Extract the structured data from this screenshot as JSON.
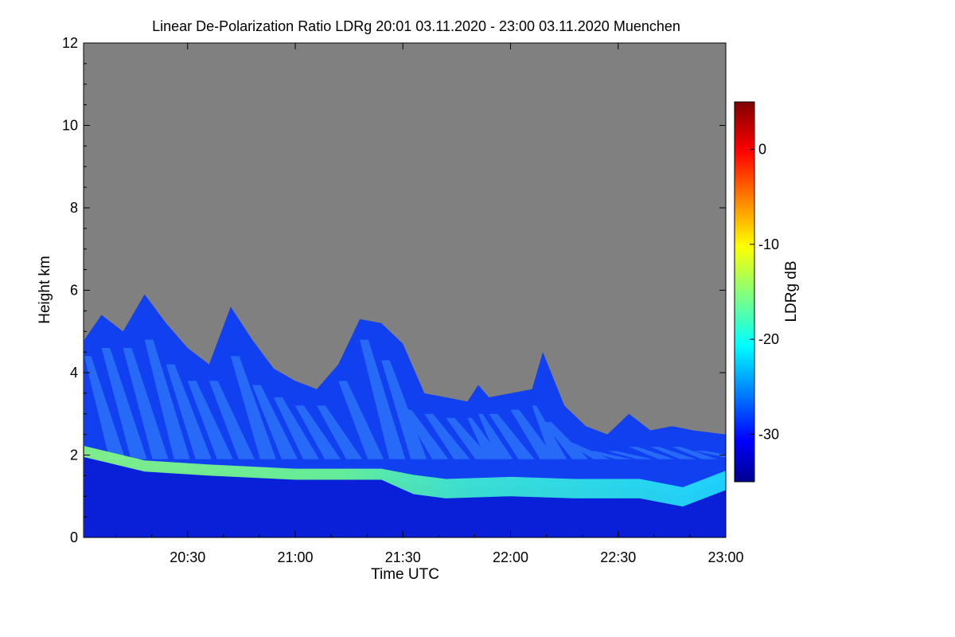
{
  "chart_data": {
    "type": "heatmap",
    "title": "Linear De-Polarization Ratio LDRg   20:01 03.11.2020 - 23:00 03.11.2020 Muenchen",
    "xlabel": "Time UTC",
    "ylabel": "Height km",
    "colorbar_label": "LDRg dB",
    "x_tick_labels": [
      "20:30",
      "21:00",
      "21:30",
      "22:00",
      "22:30",
      "23:00"
    ],
    "x_ticks_hours": [
      20.5,
      21.0,
      21.5,
      22.0,
      22.5,
      23.0
    ],
    "xlim_hours": [
      20.0167,
      23.0
    ],
    "y_ticks": [
      0,
      2,
      4,
      6,
      8,
      10,
      12
    ],
    "ylim": [
      0,
      12
    ],
    "colorbar_ticks": [
      0,
      -10,
      -20,
      -30
    ],
    "colorbar_range": [
      -35,
      5
    ],
    "no_data_color": "#808080",
    "colormap": "jet",
    "cloud_top_km": [
      [
        20.02,
        4.8
      ],
      [
        20.1,
        5.4
      ],
      [
        20.2,
        5.0
      ],
      [
        20.3,
        5.9
      ],
      [
        20.4,
        5.2
      ],
      [
        20.5,
        4.6
      ],
      [
        20.6,
        4.2
      ],
      [
        20.7,
        5.6
      ],
      [
        20.8,
        4.8
      ],
      [
        20.9,
        4.1
      ],
      [
        21.0,
        3.8
      ],
      [
        21.1,
        3.6
      ],
      [
        21.2,
        4.2
      ],
      [
        21.3,
        5.3
      ],
      [
        21.4,
        5.2
      ],
      [
        21.5,
        4.7
      ],
      [
        21.6,
        3.5
      ],
      [
        21.7,
        3.4
      ],
      [
        21.8,
        3.3
      ],
      [
        21.85,
        3.7
      ],
      [
        21.9,
        3.4
      ],
      [
        22.0,
        3.5
      ],
      [
        22.1,
        3.6
      ],
      [
        22.15,
        4.5
      ],
      [
        22.25,
        3.2
      ],
      [
        22.35,
        2.7
      ],
      [
        22.45,
        2.5
      ],
      [
        22.55,
        3.0
      ],
      [
        22.65,
        2.6
      ],
      [
        22.75,
        2.7
      ],
      [
        22.85,
        2.6
      ],
      [
        23.0,
        2.5
      ]
    ],
    "strong_layer_km": [
      [
        20.02,
        2.1
      ],
      [
        20.3,
        1.75
      ],
      [
        20.6,
        1.65
      ],
      [
        21.0,
        1.55
      ],
      [
        21.4,
        1.55
      ],
      [
        21.55,
        1.4
      ],
      [
        21.7,
        1.3
      ],
      [
        22.0,
        1.35
      ],
      [
        22.3,
        1.3
      ],
      [
        22.6,
        1.3
      ],
      [
        22.8,
        1.1
      ],
      [
        23.0,
        1.5
      ]
    ]
  }
}
